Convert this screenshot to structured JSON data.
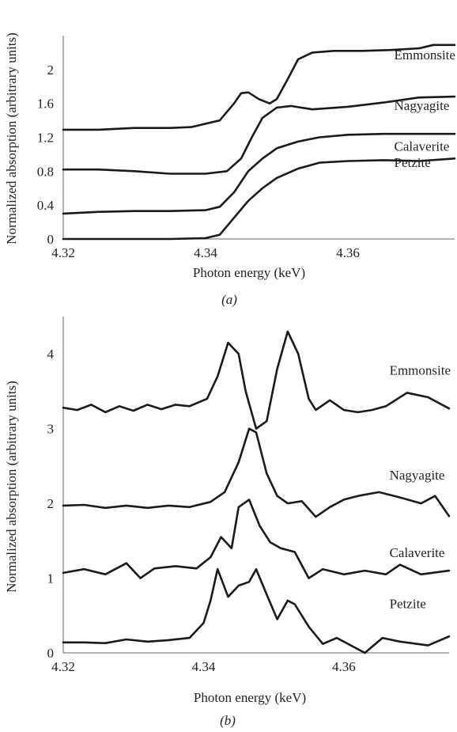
{
  "chart_data": [
    {
      "type": "line",
      "panel": "(a)",
      "caption_letter": "a",
      "xlabel": "Photon energy (keV)",
      "ylabel": "Normalized absorption (arbitrary units)",
      "xlim": [
        4.32,
        4.375
      ],
      "ylim": [
        0,
        2.4
      ],
      "x_ticks": [
        4.32,
        4.34,
        4.36
      ],
      "x_tick_labels": [
        "4.32",
        "4.34",
        "4.36"
      ],
      "y_ticks": [
        0,
        0.4,
        0.8,
        1.2,
        1.6,
        2
      ],
      "y_tick_labels": [
        "0",
        "0.4",
        "0.8",
        "1.2",
        "1.6",
        "2"
      ],
      "grid": false,
      "series": [
        {
          "name": "Emmonsite",
          "label_at": [
            4.3665,
            2.12
          ],
          "x": [
            4.32,
            4.325,
            4.33,
            4.335,
            4.338,
            4.342,
            4.344,
            4.345,
            4.346,
            4.3475,
            4.349,
            4.35,
            4.3515,
            4.353,
            4.355,
            4.358,
            4.362,
            4.366,
            4.37,
            4.372,
            4.375
          ],
          "y": [
            1.29,
            1.29,
            1.31,
            1.31,
            1.32,
            1.4,
            1.6,
            1.72,
            1.73,
            1.65,
            1.6,
            1.65,
            1.88,
            2.12,
            2.2,
            2.22,
            2.22,
            2.23,
            2.25,
            2.29,
            2.29
          ]
        },
        {
          "name": "Nagyagite",
          "label_at": [
            4.3665,
            1.52
          ],
          "x": [
            4.32,
            4.325,
            4.33,
            4.335,
            4.34,
            4.343,
            4.345,
            4.3465,
            4.348,
            4.35,
            4.352,
            4.355,
            4.36,
            4.365,
            4.37,
            4.375
          ],
          "y": [
            0.82,
            0.82,
            0.8,
            0.77,
            0.77,
            0.8,
            0.95,
            1.2,
            1.43,
            1.55,
            1.57,
            1.53,
            1.56,
            1.61,
            1.67,
            1.68
          ]
        },
        {
          "name": "Calaverite",
          "label_at": [
            4.3665,
            1.04
          ],
          "x": [
            4.32,
            4.325,
            4.33,
            4.335,
            4.34,
            4.342,
            4.344,
            4.346,
            4.348,
            4.35,
            4.353,
            4.356,
            4.36,
            4.365,
            4.37,
            4.375
          ],
          "y": [
            0.3,
            0.32,
            0.33,
            0.33,
            0.34,
            0.38,
            0.55,
            0.8,
            0.95,
            1.07,
            1.15,
            1.2,
            1.23,
            1.24,
            1.24,
            1.24
          ]
        },
        {
          "name": "Petzite",
          "label_at": [
            4.3665,
            0.85
          ],
          "x": [
            4.32,
            4.325,
            4.33,
            4.335,
            4.34,
            4.342,
            4.344,
            4.346,
            4.348,
            4.35,
            4.353,
            4.356,
            4.36,
            4.365,
            4.37,
            4.375
          ],
          "y": [
            0.0,
            0.0,
            0.0,
            0.0,
            0.01,
            0.05,
            0.25,
            0.45,
            0.6,
            0.72,
            0.83,
            0.9,
            0.92,
            0.93,
            0.92,
            0.95
          ]
        }
      ]
    },
    {
      "type": "line",
      "panel": "(b)",
      "caption_letter": "b",
      "xlabel": "Photon energy (keV)",
      "ylabel": "Normalized absorption (arbitrary units)",
      "xlim": [
        4.32,
        4.375
      ],
      "ylim": [
        0,
        4.5
      ],
      "x_ticks": [
        4.32,
        4.34,
        4.36
      ],
      "x_tick_labels": [
        "4.32",
        "4.34",
        "4.36"
      ],
      "y_ticks": [
        0,
        1,
        2,
        3,
        4
      ],
      "y_tick_labels": [
        "0",
        "1",
        "2",
        "3",
        "4"
      ],
      "grid": false,
      "series": [
        {
          "name": "Emmonsite",
          "label_at": [
            4.3665,
            3.72
          ],
          "x": [
            4.32,
            4.322,
            4.324,
            4.326,
            4.328,
            4.33,
            4.332,
            4.334,
            4.336,
            4.338,
            4.3405,
            4.342,
            4.3435,
            4.345,
            4.346,
            4.3475,
            4.349,
            4.3505,
            4.352,
            4.3535,
            4.355,
            4.356,
            4.358,
            4.36,
            4.362,
            4.364,
            4.366,
            4.369,
            4.372,
            4.375
          ],
          "y": [
            3.28,
            3.25,
            3.32,
            3.22,
            3.3,
            3.24,
            3.32,
            3.26,
            3.32,
            3.3,
            3.4,
            3.7,
            4.15,
            4.0,
            3.5,
            3.0,
            3.1,
            3.8,
            4.3,
            4.0,
            3.4,
            3.25,
            3.38,
            3.25,
            3.22,
            3.25,
            3.3,
            3.48,
            3.42,
            3.27
          ]
        },
        {
          "name": "Nagyagite",
          "label_at": [
            4.3665,
            2.32
          ],
          "x": [
            4.32,
            4.323,
            4.326,
            4.329,
            4.332,
            4.335,
            4.338,
            4.341,
            4.343,
            4.345,
            4.3465,
            4.3475,
            4.349,
            4.3505,
            4.352,
            4.354,
            4.356,
            4.358,
            4.36,
            4.362,
            4.365,
            4.368,
            4.371,
            4.373,
            4.375
          ],
          "y": [
            1.97,
            1.98,
            1.94,
            1.97,
            1.94,
            1.97,
            1.95,
            2.02,
            2.15,
            2.55,
            3.0,
            2.95,
            2.4,
            2.1,
            2.0,
            2.03,
            1.82,
            1.95,
            2.05,
            2.1,
            2.15,
            2.08,
            2.0,
            2.1,
            1.83
          ]
        },
        {
          "name": "Calaverite",
          "label_at": [
            4.3665,
            1.28
          ],
          "x": [
            4.32,
            4.323,
            4.326,
            4.329,
            4.331,
            4.333,
            4.336,
            4.339,
            4.341,
            4.3425,
            4.344,
            4.345,
            4.3465,
            4.348,
            4.3495,
            4.351,
            4.353,
            4.355,
            4.357,
            4.36,
            4.363,
            4.366,
            4.368,
            4.371,
            4.375
          ],
          "y": [
            1.07,
            1.12,
            1.05,
            1.2,
            1.0,
            1.13,
            1.16,
            1.13,
            1.28,
            1.55,
            1.4,
            1.95,
            2.05,
            1.7,
            1.48,
            1.4,
            1.35,
            1.0,
            1.12,
            1.05,
            1.1,
            1.05,
            1.18,
            1.05,
            1.1
          ]
        },
        {
          "name": "Petzite",
          "label_at": [
            4.3665,
            0.6
          ],
          "x": [
            4.32,
            4.323,
            4.326,
            4.329,
            4.332,
            4.335,
            4.338,
            4.34,
            4.341,
            4.342,
            4.3435,
            4.345,
            4.3465,
            4.3475,
            4.349,
            4.3505,
            4.352,
            4.353,
            4.355,
            4.357,
            4.359,
            4.361,
            4.363,
            4.3655,
            4.368,
            4.372,
            4.375
          ],
          "y": [
            0.14,
            0.14,
            0.13,
            0.18,
            0.15,
            0.17,
            0.2,
            0.4,
            0.7,
            1.12,
            0.75,
            0.9,
            0.95,
            1.12,
            0.78,
            0.45,
            0.7,
            0.65,
            0.35,
            0.12,
            0.2,
            0.1,
            0.0,
            0.2,
            0.15,
            0.1,
            0.22
          ]
        }
      ]
    }
  ]
}
